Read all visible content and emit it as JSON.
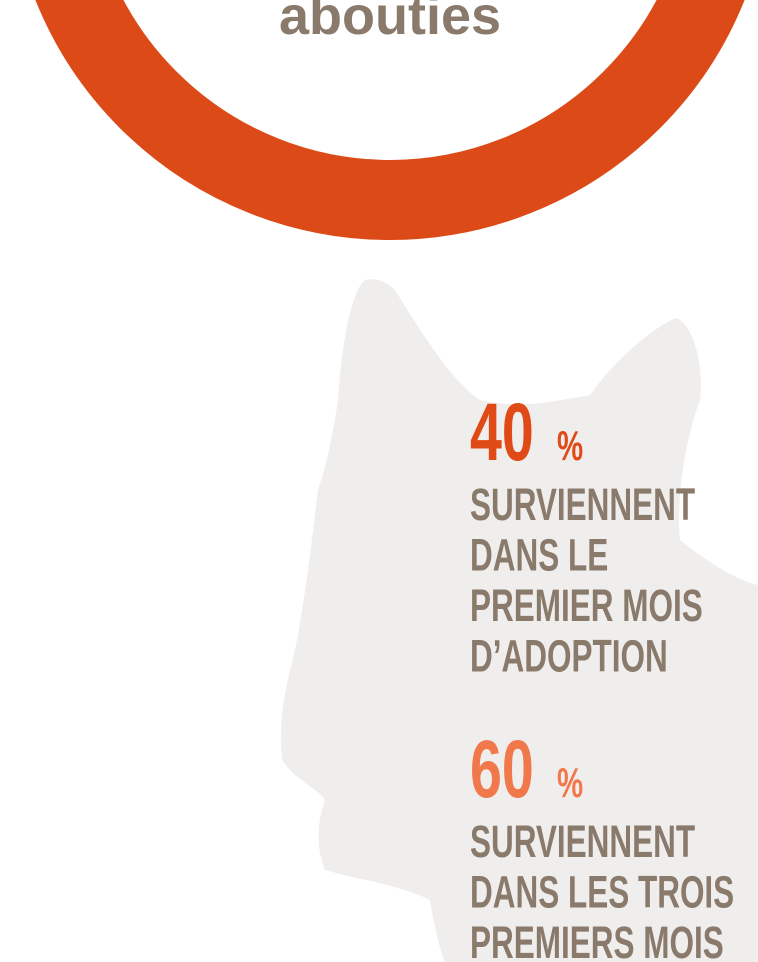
{
  "header": {
    "word": "abouties"
  },
  "stats": [
    {
      "value": "40",
      "unit": "%",
      "lines": [
        "SURVIENNENT",
        "DANS LE",
        "PREMIER MOIS",
        "D’ADOPTION"
      ]
    },
    {
      "value": "60",
      "unit": "%",
      "lines": [
        "SURVIENNENT",
        "DANS LES TROIS",
        "PREMIERS MOIS"
      ]
    }
  ]
}
